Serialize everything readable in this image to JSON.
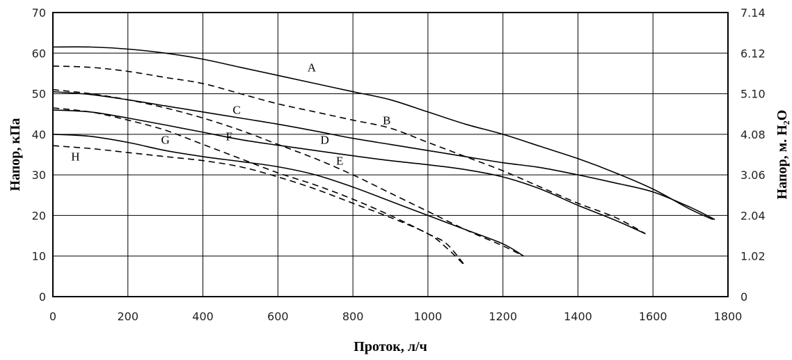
{
  "chart_data": {
    "type": "line",
    "xlabel": "Проток, л/ч",
    "ylabel": "Напор, кПа",
    "y2label": "Напор, м. H₂O",
    "xlim": [
      0,
      1800
    ],
    "ylim": [
      0,
      70
    ],
    "grid": true,
    "x_ticks": [
      "0",
      "200",
      "400",
      "600",
      "800",
      "1000",
      "1200",
      "1400",
      "1600",
      "1800"
    ],
    "y_ticks": [
      "0",
      "10",
      "20",
      "30",
      "40",
      "50",
      "60",
      "70"
    ],
    "y2_ticks": [
      "0",
      "1.02",
      "2.04",
      "3.06",
      "4.08",
      "5.10",
      "6.12",
      "7.14"
    ],
    "series": [
      {
        "name": "A",
        "style": "solid",
        "label_at": [
          690,
          55.5
        ],
        "points": [
          [
            0,
            61.5
          ],
          [
            100,
            61.5
          ],
          [
            200,
            61
          ],
          [
            300,
            60
          ],
          [
            400,
            58.5
          ],
          [
            500,
            56.5
          ],
          [
            600,
            54.5
          ],
          [
            700,
            52.5
          ],
          [
            800,
            50.5
          ],
          [
            900,
            48.5
          ],
          [
            1000,
            45.5
          ],
          [
            1100,
            42.5
          ],
          [
            1200,
            40
          ],
          [
            1300,
            37
          ],
          [
            1400,
            34
          ],
          [
            1500,
            30.5
          ],
          [
            1600,
            26.5
          ],
          [
            1700,
            21.5
          ],
          [
            1760,
            19
          ]
        ]
      },
      {
        "name": "B",
        "style": "dashed",
        "label_at": [
          890,
          42.5
        ],
        "points": [
          [
            0,
            56.8
          ],
          [
            100,
            56.5
          ],
          [
            200,
            55.5
          ],
          [
            300,
            54
          ],
          [
            400,
            52.5
          ],
          [
            500,
            50
          ],
          [
            600,
            47.5
          ],
          [
            700,
            45.5
          ],
          [
            800,
            43.5
          ],
          [
            900,
            41.5
          ],
          [
            1000,
            38
          ],
          [
            1100,
            34.5
          ],
          [
            1200,
            31
          ],
          [
            1300,
            27
          ],
          [
            1400,
            23
          ],
          [
            1500,
            19.5
          ],
          [
            1580,
            15.5
          ]
        ]
      },
      {
        "name": "C",
        "style": "solid",
        "label_at": [
          490,
          45
        ],
        "points": [
          [
            0,
            50.5
          ],
          [
            100,
            49.8
          ],
          [
            200,
            48.5
          ],
          [
            300,
            47
          ],
          [
            400,
            45.5
          ],
          [
            500,
            44
          ],
          [
            600,
            42.5
          ],
          [
            700,
            40.8
          ],
          [
            800,
            39
          ],
          [
            900,
            37.5
          ],
          [
            1000,
            36
          ],
          [
            1100,
            34.5
          ],
          [
            1200,
            33
          ],
          [
            1300,
            31.8
          ],
          [
            1400,
            30
          ],
          [
            1500,
            28
          ],
          [
            1600,
            25.8
          ],
          [
            1700,
            22
          ],
          [
            1765,
            19
          ]
        ]
      },
      {
        "name": "D",
        "style": "solid",
        "label_at": [
          725,
          37.7
        ],
        "points": [
          [
            0,
            46
          ],
          [
            100,
            45.5
          ],
          [
            200,
            44
          ],
          [
            300,
            42.3
          ],
          [
            400,
            40.5
          ],
          [
            500,
            38.7
          ],
          [
            600,
            37.3
          ],
          [
            700,
            36
          ],
          [
            800,
            34.7
          ],
          [
            900,
            33.5
          ],
          [
            1000,
            32.5
          ],
          [
            1100,
            31.3
          ],
          [
            1200,
            29.5
          ],
          [
            1300,
            26.5
          ],
          [
            1400,
            22.5
          ],
          [
            1500,
            18.8
          ],
          [
            1580,
            15.5
          ]
        ]
      },
      {
        "name": "E",
        "style": "dashed",
        "label_at": [
          765,
          32.5
        ],
        "points": [
          [
            0,
            51
          ],
          [
            100,
            50
          ],
          [
            200,
            48.5
          ],
          [
            300,
            46.5
          ],
          [
            400,
            44
          ],
          [
            500,
            41
          ],
          [
            600,
            37.5
          ],
          [
            700,
            34
          ],
          [
            800,
            30
          ],
          [
            900,
            25.5
          ],
          [
            1000,
            21
          ],
          [
            1100,
            16.5
          ],
          [
            1200,
            12.5
          ],
          [
            1255,
            10
          ]
        ]
      },
      {
        "name": "F",
        "style": "dashed",
        "label_at": [
          470,
          38.5
        ],
        "points": [
          [
            0,
            46.5
          ],
          [
            100,
            45.5
          ],
          [
            200,
            43.5
          ],
          [
            300,
            41
          ],
          [
            400,
            37.5
          ],
          [
            500,
            34
          ],
          [
            600,
            30.5
          ],
          [
            700,
            27.5
          ],
          [
            800,
            24
          ],
          [
            900,
            20
          ],
          [
            1000,
            15.5
          ],
          [
            1050,
            13
          ],
          [
            1100,
            7.5
          ]
        ]
      },
      {
        "name": "G",
        "style": "solid",
        "label_at": [
          300,
          37.7
        ],
        "points": [
          [
            0,
            40
          ],
          [
            100,
            39.5
          ],
          [
            200,
            38
          ],
          [
            300,
            36
          ],
          [
            400,
            34.5
          ],
          [
            500,
            33.3
          ],
          [
            600,
            32
          ],
          [
            700,
            30
          ],
          [
            800,
            27
          ],
          [
            900,
            23.5
          ],
          [
            1000,
            20
          ],
          [
            1100,
            16.5
          ],
          [
            1200,
            13
          ],
          [
            1255,
            10
          ]
        ]
      },
      {
        "name": "H",
        "style": "dashed",
        "label_at": [
          60,
          33.5
        ],
        "points": [
          [
            0,
            37.2
          ],
          [
            100,
            36.5
          ],
          [
            200,
            35.5
          ],
          [
            300,
            34.5
          ],
          [
            400,
            33.5
          ],
          [
            500,
            32
          ],
          [
            600,
            29.5
          ],
          [
            700,
            26.5
          ],
          [
            800,
            23
          ],
          [
            900,
            19.5
          ],
          [
            1000,
            15.5
          ],
          [
            1050,
            12
          ],
          [
            1100,
            7.5
          ]
        ]
      }
    ]
  }
}
